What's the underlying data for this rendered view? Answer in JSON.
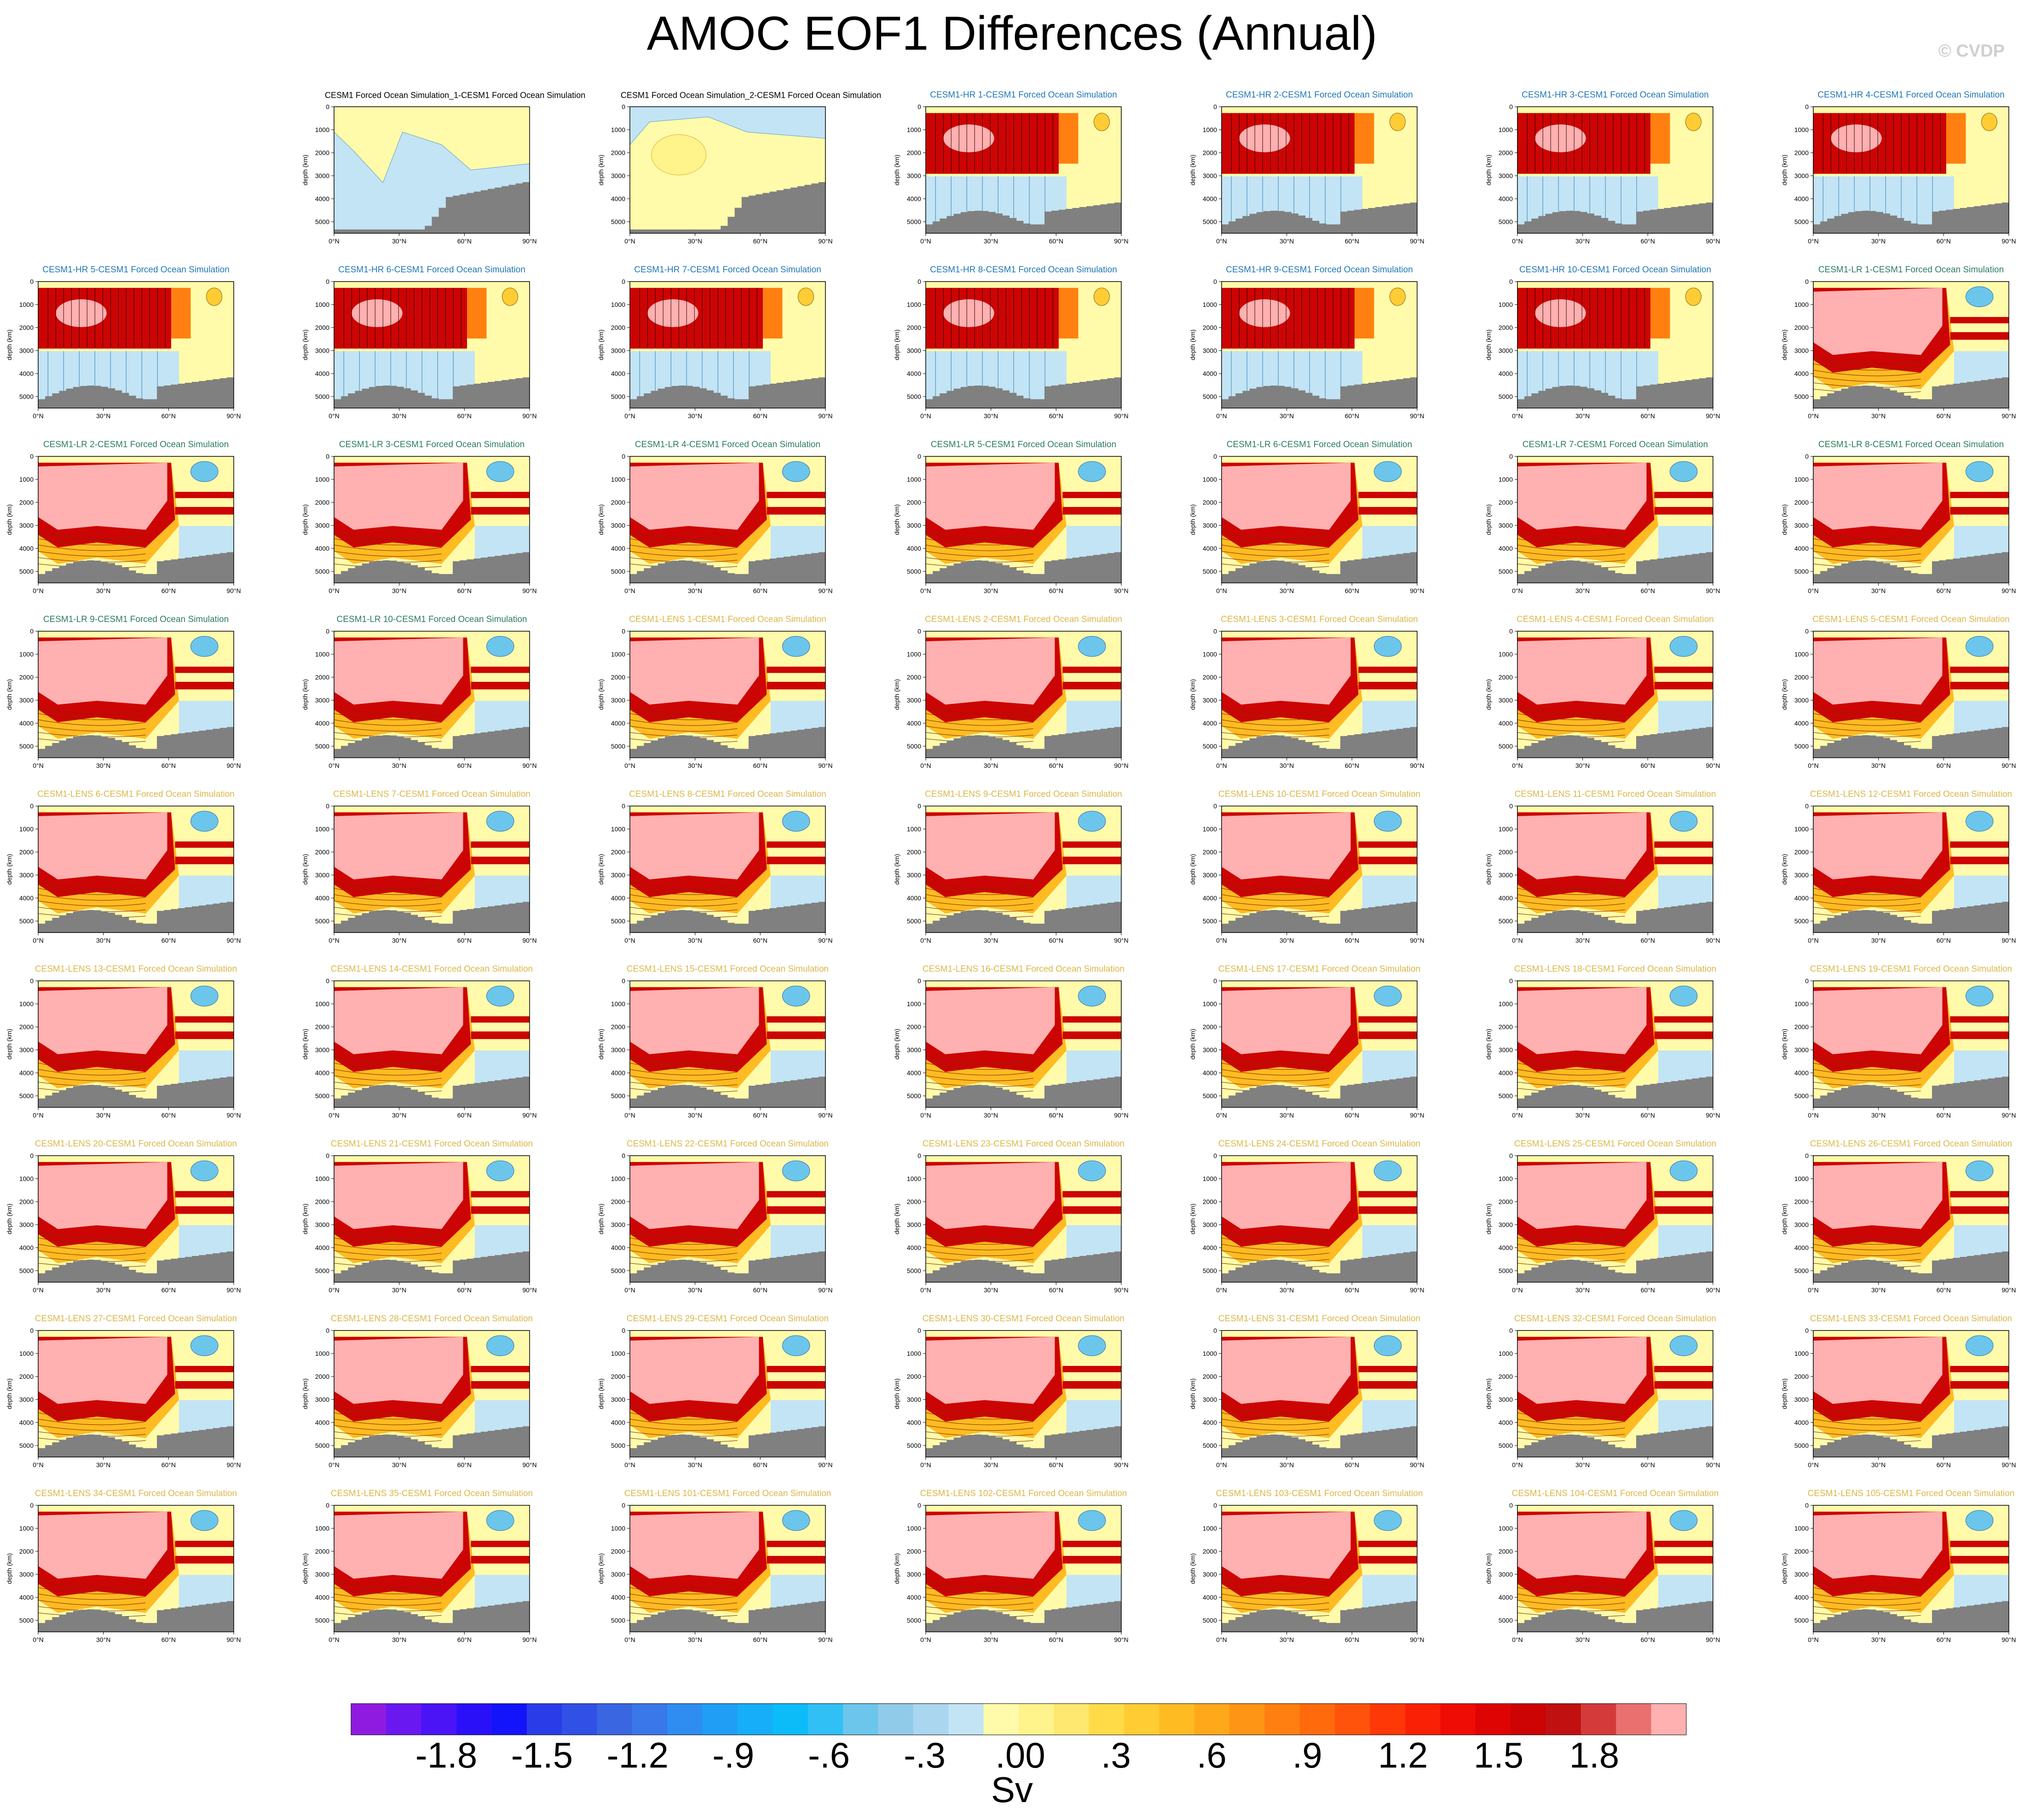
{
  "title": "AMOC EOF1 Differences (Annual)",
  "watermark": "© CVDP",
  "colors": {
    "title_obs": "#000000",
    "title_hr": "#1f77b4",
    "title_lr": "#2c7d5b",
    "title_lens": "#d9b84a",
    "land": "#808080",
    "frame": "#000000"
  },
  "chart_data": {
    "type": "heatmap",
    "panel_y_ticks": [
      "0",
      "1000",
      "2000",
      "3000",
      "4000",
      "5000"
    ],
    "panel_ylabel": "depth (km)",
    "panel_x_ticks": [
      "0°N",
      "30°N",
      "60°N",
      "90°N"
    ],
    "panels": [
      {
        "row": 0,
        "col": 1,
        "kind": "obs1",
        "title": "CESM1 Forced Ocean Simulation_1-CESM1 Forced Ocean Simulation"
      },
      {
        "row": 0,
        "col": 2,
        "kind": "obs2",
        "title": "CESM1 Forced Ocean Simulation_2-CESM1 Forced Ocean Simulation"
      },
      {
        "row": 0,
        "col": 3,
        "kind": "hr",
        "title": "CESM1-HR 1-CESM1 Forced Ocean Simulation"
      },
      {
        "row": 0,
        "col": 4,
        "kind": "hr",
        "title": "CESM1-HR 2-CESM1 Forced Ocean Simulation"
      },
      {
        "row": 0,
        "col": 5,
        "kind": "hr",
        "title": "CESM1-HR 3-CESM1 Forced Ocean Simulation"
      },
      {
        "row": 0,
        "col": 6,
        "kind": "hr",
        "title": "CESM1-HR 4-CESM1 Forced Ocean Simulation"
      },
      {
        "row": 1,
        "col": 0,
        "kind": "hr",
        "title": "CESM1-HR 5-CESM1 Forced Ocean Simulation"
      },
      {
        "row": 1,
        "col": 1,
        "kind": "hr",
        "title": "CESM1-HR 6-CESM1 Forced Ocean Simulation"
      },
      {
        "row": 1,
        "col": 2,
        "kind": "hr",
        "title": "CESM1-HR 7-CESM1 Forced Ocean Simulation"
      },
      {
        "row": 1,
        "col": 3,
        "kind": "hr",
        "title": "CESM1-HR 8-CESM1 Forced Ocean Simulation"
      },
      {
        "row": 1,
        "col": 4,
        "kind": "hr",
        "title": "CESM1-HR 9-CESM1 Forced Ocean Simulation"
      },
      {
        "row": 1,
        "col": 5,
        "kind": "hr",
        "title": "CESM1-HR 10-CESM1 Forced Ocean Simulation"
      },
      {
        "row": 1,
        "col": 6,
        "kind": "lr",
        "title": "CESM1-LR 1-CESM1 Forced Ocean Simulation"
      },
      {
        "row": 2,
        "col": 0,
        "kind": "lr",
        "title": "CESM1-LR 2-CESM1 Forced Ocean Simulation"
      },
      {
        "row": 2,
        "col": 1,
        "kind": "lr",
        "title": "CESM1-LR 3-CESM1 Forced Ocean Simulation"
      },
      {
        "row": 2,
        "col": 2,
        "kind": "lr",
        "title": "CESM1-LR 4-CESM1 Forced Ocean Simulation"
      },
      {
        "row": 2,
        "col": 3,
        "kind": "lr",
        "title": "CESM1-LR 5-CESM1 Forced Ocean Simulation"
      },
      {
        "row": 2,
        "col": 4,
        "kind": "lr",
        "title": "CESM1-LR 6-CESM1 Forced Ocean Simulation"
      },
      {
        "row": 2,
        "col": 5,
        "kind": "lr",
        "title": "CESM1-LR 7-CESM1 Forced Ocean Simulation"
      },
      {
        "row": 2,
        "col": 6,
        "kind": "lr",
        "title": "CESM1-LR 8-CESM1 Forced Ocean Simulation"
      },
      {
        "row": 3,
        "col": 0,
        "kind": "lr",
        "title": "CESM1-LR 9-CESM1 Forced Ocean Simulation"
      },
      {
        "row": 3,
        "col": 1,
        "kind": "lr",
        "title": "CESM1-LR 10-CESM1 Forced Ocean Simulation"
      },
      {
        "row": 3,
        "col": 2,
        "kind": "lens",
        "title": "CESM1-LENS 1-CESM1 Forced Ocean Simulation"
      },
      {
        "row": 3,
        "col": 3,
        "kind": "lens",
        "title": "CESM1-LENS 2-CESM1 Forced Ocean Simulation"
      },
      {
        "row": 3,
        "col": 4,
        "kind": "lens",
        "title": "CESM1-LENS 3-CESM1 Forced Ocean Simulation"
      },
      {
        "row": 3,
        "col": 5,
        "kind": "lens",
        "title": "CESM1-LENS 4-CESM1 Forced Ocean Simulation"
      },
      {
        "row": 3,
        "col": 6,
        "kind": "lens",
        "title": "CESM1-LENS 5-CESM1 Forced Ocean Simulation"
      },
      {
        "row": 4,
        "col": 0,
        "kind": "lens",
        "title": "CESM1-LENS 6-CESM1 Forced Ocean Simulation"
      },
      {
        "row": 4,
        "col": 1,
        "kind": "lens",
        "title": "CESM1-LENS 7-CESM1 Forced Ocean Simulation"
      },
      {
        "row": 4,
        "col": 2,
        "kind": "lens",
        "title": "CESM1-LENS 8-CESM1 Forced Ocean Simulation"
      },
      {
        "row": 4,
        "col": 3,
        "kind": "lens",
        "title": "CESM1-LENS 9-CESM1 Forced Ocean Simulation"
      },
      {
        "row": 4,
        "col": 4,
        "kind": "lens",
        "title": "CESM1-LENS 10-CESM1 Forced Ocean Simulation"
      },
      {
        "row": 4,
        "col": 5,
        "kind": "lens",
        "title": "CESM1-LENS 11-CESM1 Forced Ocean Simulation"
      },
      {
        "row": 4,
        "col": 6,
        "kind": "lens",
        "title": "CESM1-LENS 12-CESM1 Forced Ocean Simulation"
      },
      {
        "row": 5,
        "col": 0,
        "kind": "lens",
        "title": "CESM1-LENS 13-CESM1 Forced Ocean Simulation"
      },
      {
        "row": 5,
        "col": 1,
        "kind": "lens",
        "title": "CESM1-LENS 14-CESM1 Forced Ocean Simulation"
      },
      {
        "row": 5,
        "col": 2,
        "kind": "lens",
        "title": "CESM1-LENS 15-CESM1 Forced Ocean Simulation"
      },
      {
        "row": 5,
        "col": 3,
        "kind": "lens",
        "title": "CESM1-LENS 16-CESM1 Forced Ocean Simulation"
      },
      {
        "row": 5,
        "col": 4,
        "kind": "lens",
        "title": "CESM1-LENS 17-CESM1 Forced Ocean Simulation"
      },
      {
        "row": 5,
        "col": 5,
        "kind": "lens",
        "title": "CESM1-LENS 18-CESM1 Forced Ocean Simulation"
      },
      {
        "row": 5,
        "col": 6,
        "kind": "lens",
        "title": "CESM1-LENS 19-CESM1 Forced Ocean Simulation"
      },
      {
        "row": 6,
        "col": 0,
        "kind": "lens",
        "title": "CESM1-LENS 20-CESM1 Forced Ocean Simulation"
      },
      {
        "row": 6,
        "col": 1,
        "kind": "lens",
        "title": "CESM1-LENS 21-CESM1 Forced Ocean Simulation"
      },
      {
        "row": 6,
        "col": 2,
        "kind": "lens",
        "title": "CESM1-LENS 22-CESM1 Forced Ocean Simulation"
      },
      {
        "row": 6,
        "col": 3,
        "kind": "lens",
        "title": "CESM1-LENS 23-CESM1 Forced Ocean Simulation"
      },
      {
        "row": 6,
        "col": 4,
        "kind": "lens",
        "title": "CESM1-LENS 24-CESM1 Forced Ocean Simulation"
      },
      {
        "row": 6,
        "col": 5,
        "kind": "lens",
        "title": "CESM1-LENS 25-CESM1 Forced Ocean Simulation"
      },
      {
        "row": 6,
        "col": 6,
        "kind": "lens",
        "title": "CESM1-LENS 26-CESM1 Forced Ocean Simulation"
      },
      {
        "row": 7,
        "col": 0,
        "kind": "lens",
        "title": "CESM1-LENS 27-CESM1 Forced Ocean Simulation"
      },
      {
        "row": 7,
        "col": 1,
        "kind": "lens",
        "title": "CESM1-LENS 28-CESM1 Forced Ocean Simulation"
      },
      {
        "row": 7,
        "col": 2,
        "kind": "lens",
        "title": "CESM1-LENS 29-CESM1 Forced Ocean Simulation"
      },
      {
        "row": 7,
        "col": 3,
        "kind": "lens",
        "title": "CESM1-LENS 30-CESM1 Forced Ocean Simulation"
      },
      {
        "row": 7,
        "col": 4,
        "kind": "lens",
        "title": "CESM1-LENS 31-CESM1 Forced Ocean Simulation"
      },
      {
        "row": 7,
        "col": 5,
        "kind": "lens",
        "title": "CESM1-LENS 32-CESM1 Forced Ocean Simulation"
      },
      {
        "row": 7,
        "col": 6,
        "kind": "lens",
        "title": "CESM1-LENS 33-CESM1 Forced Ocean Simulation"
      },
      {
        "row": 8,
        "col": 0,
        "kind": "lens",
        "title": "CESM1-LENS 34-CESM1 Forced Ocean Simulation"
      },
      {
        "row": 8,
        "col": 1,
        "kind": "lens",
        "title": "CESM1-LENS 35-CESM1 Forced Ocean Simulation"
      },
      {
        "row": 8,
        "col": 2,
        "kind": "lens",
        "title": "CESM1-LENS 101-CESM1 Forced Ocean Simulation"
      },
      {
        "row": 8,
        "col": 3,
        "kind": "lens",
        "title": "CESM1-LENS 102-CESM1 Forced Ocean Simulation"
      },
      {
        "row": 8,
        "col": 4,
        "kind": "lens",
        "title": "CESM1-LENS 103-CESM1 Forced Ocean Simulation"
      },
      {
        "row": 8,
        "col": 5,
        "kind": "lens",
        "title": "CESM1-LENS 104-CESM1 Forced Ocean Simulation"
      },
      {
        "row": 8,
        "col": 6,
        "kind": "lens",
        "title": "CESM1-LENS 105-CESM1 Forced Ocean Simulation"
      }
    ],
    "colorbar": {
      "colors": [
        "#8f1be0",
        "#6a18f0",
        "#4a14f6",
        "#2a10f8",
        "#1414fa",
        "#2a3ce8",
        "#3050e6",
        "#3a66e2",
        "#3a78ea",
        "#2f8cf0",
        "#209ef6",
        "#16aef8",
        "#0cbcf8",
        "#30c0f6",
        "#6cc6ec",
        "#90cbea",
        "#aad6f0",
        "#c2e4f4",
        "#fffbaa",
        "#fff38c",
        "#ffe870",
        "#ffdb48",
        "#ffcc33",
        "#ffbb22",
        "#ffa81a",
        "#ff9514",
        "#ff8010",
        "#ff6a0c",
        "#ff520a",
        "#ff3808",
        "#fa2006",
        "#ee0c04",
        "#de0404",
        "#cc0404",
        "#c01010",
        "#d43a3a",
        "#ea7070",
        "#ffb0b0"
      ],
      "tick_labels": [
        "-1.8",
        "-1.5",
        "-1.2",
        "-.9",
        "-.6",
        "-.3",
        ".00",
        ".3",
        ".6",
        ".9",
        "1.2",
        "1.5",
        "1.8"
      ],
      "unit": "Sv"
    }
  }
}
